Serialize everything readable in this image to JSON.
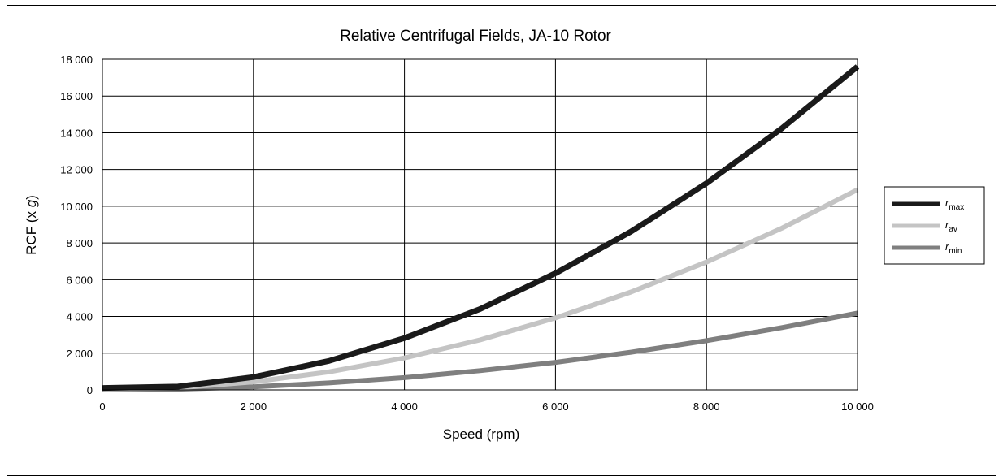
{
  "chart_data": {
    "type": "line",
    "title": "Relative Centrifugal Fields, JA-10 Rotor",
    "xlabel": "Speed (rpm)",
    "ylabel_prefix": "RCF (x ",
    "ylabel_italic": "g",
    "ylabel_suffix": ")",
    "xlim": [
      0,
      10000
    ],
    "ylim": [
      0,
      18000
    ],
    "x_ticks": [
      0,
      2000,
      4000,
      6000,
      8000,
      10000
    ],
    "x_tick_labels": [
      "0",
      "2 000",
      "4 000",
      "6 000",
      "8 000",
      "10 000"
    ],
    "y_ticks": [
      0,
      2000,
      4000,
      6000,
      8000,
      10000,
      12000,
      14000,
      16000,
      18000
    ],
    "y_tick_labels": [
      "0",
      "2 000",
      "4 000",
      "6 000",
      "8 000",
      "10 000",
      "12 000",
      "14 000",
      "16 000",
      "18 000"
    ],
    "grid": true,
    "legend_position": "right",
    "x": [
      0,
      1000,
      2000,
      3000,
      4000,
      5000,
      6000,
      7000,
      8000,
      9000,
      10000
    ],
    "series": [
      {
        "name_main": "r",
        "name_sub": "max",
        "color": "#1a1a1a",
        "values": [
          100,
          180,
          700,
          1580,
          2820,
          4400,
          6350,
          8620,
          11250,
          14250,
          17600
        ]
      },
      {
        "name_main": "r",
        "name_sub": "av",
        "color": "#c4c4c4",
        "values": [
          50,
          110,
          440,
          980,
          1740,
          2720,
          3920,
          5330,
          6960,
          8810,
          10900
        ]
      },
      {
        "name_main": "r",
        "name_sub": "min",
        "color": "#7f7f7f",
        "values": [
          20,
          40,
          170,
          380,
          670,
          1050,
          1500,
          2050,
          2680,
          3390,
          4180
        ]
      }
    ]
  }
}
